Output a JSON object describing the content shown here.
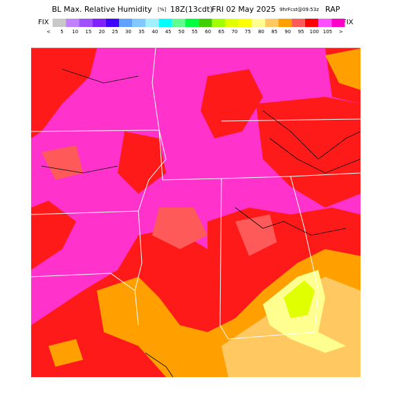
{
  "header": {
    "title": "BL Max. Relative Humidity",
    "units": "[%]",
    "time": "18Z(13cdt)",
    "date": "FRI 02 May 2025",
    "forecast": "9hrFcst@09:53z",
    "model": "RAP"
  },
  "colorbar": {
    "left_label": "FIX",
    "right_label": "FIX",
    "labels": [
      "<",
      5,
      10,
      15,
      20,
      25,
      30,
      35,
      40,
      45,
      50,
      55,
      60,
      65,
      70,
      75,
      80,
      85,
      90,
      95,
      100,
      105,
      ">"
    ],
    "colors": [
      "#c8c8c8",
      "#c080ff",
      "#a050ff",
      "#8020ff",
      "#4000ff",
      "#60a0ff",
      "#80c8ff",
      "#a0f0ff",
      "#00ffff",
      "#60ff90",
      "#00ff40",
      "#40d000",
      "#a0ff00",
      "#e0ff00",
      "#ffff00",
      "#ffff90",
      "#ffc860",
      "#ffa000",
      "#ff5a5a",
      "#ff0000",
      "#ff50ff",
      "#ff00c8"
    ]
  }
}
